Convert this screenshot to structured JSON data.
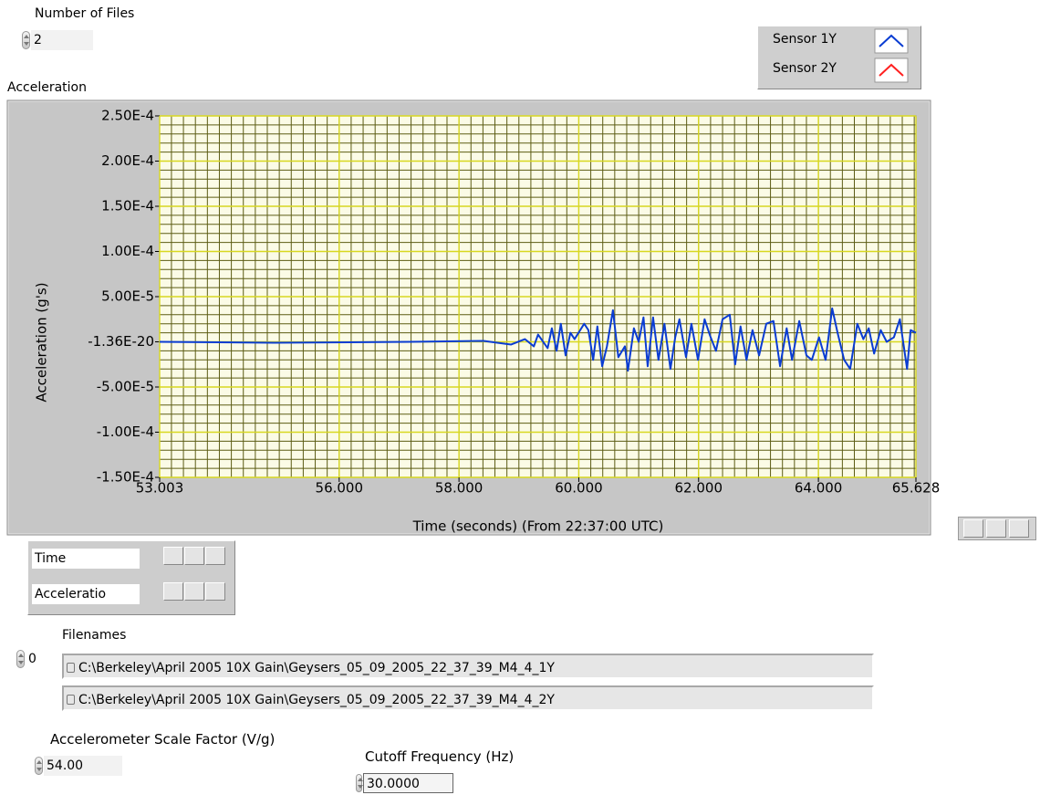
{
  "number_of_files": {
    "label": "Number of Files",
    "value": "2"
  },
  "chart_data": {
    "type": "line",
    "title": "Acceleration",
    "x_label": "Time (seconds) (From 22:37:00 UTC)",
    "y_label": "Acceleration (g's)",
    "x": [
      53.003,
      54.91,
      57.19,
      58.41,
      58.87,
      59.1,
      59.25,
      59.32,
      59.48,
      59.55,
      59.63,
      59.7,
      59.78,
      59.86,
      59.93,
      60.09,
      60.16,
      60.24,
      60.31,
      60.39,
      60.47,
      60.57,
      60.66,
      60.77,
      60.82,
      60.92,
      61.0,
      61.08,
      61.15,
      61.24,
      61.33,
      61.43,
      61.53,
      61.61,
      61.68,
      61.79,
      61.88,
      61.99,
      62.1,
      62.19,
      62.29,
      62.4,
      62.52,
      62.61,
      62.7,
      62.8,
      62.9,
      63.01,
      63.13,
      63.25,
      63.36,
      63.47,
      63.56,
      63.68,
      63.8,
      63.89,
      64.01,
      64.12,
      64.23,
      64.32,
      64.43,
      64.53,
      64.65,
      64.75,
      64.84,
      64.93,
      65.04,
      65.14,
      65.26,
      65.36,
      65.48,
      65.54,
      65.628
    ],
    "series": [
      {
        "name": "Sensor 1Y",
        "color": "#0a3cd2",
        "values": [
          0,
          -1e-06,
          0,
          1e-06,
          -3e-06,
          3e-06,
          -5e-06,
          8e-06,
          -7e-06,
          1.5e-05,
          -1e-05,
          2e-05,
          -1.5e-05,
          1e-05,
          3e-06,
          2e-05,
          1.3e-05,
          -2e-05,
          1.7e-05,
          -2.7e-05,
          -5e-06,
          3.5e-05,
          -1.7e-05,
          -5e-06,
          -3.2e-05,
          1.5e-05,
          0,
          2.7e-05,
          -2.7e-05,
          2.7e-05,
          -2e-05,
          2e-05,
          -3e-05,
          5e-06,
          2.5e-05,
          -1.7e-05,
          2e-05,
          -2e-05,
          2.5e-05,
          7e-06,
          -1e-05,
          2.5e-05,
          3e-05,
          -2.5e-05,
          1.7e-05,
          -2e-05,
          1.3e-05,
          -1.5e-05,
          2e-05,
          2.3e-05,
          -2.7e-05,
          1.5e-05,
          -2e-05,
          2.3e-05,
          -1.5e-05,
          -2e-05,
          5e-06,
          -2e-05,
          3.7e-05,
          1e-05,
          -2e-05,
          -3e-05,
          2e-05,
          3e-06,
          1.5e-05,
          -1.3e-05,
          1.3e-05,
          0,
          5e-06,
          2.5e-05,
          -3e-05,
          1.3e-05,
          1e-05
        ]
      },
      {
        "name": "Sensor 2Y",
        "color": "#ff2020"
      }
    ],
    "xlim": [
      53.003,
      65.628
    ],
    "ylim": [
      -0.00015,
      0.00025
    ],
    "xticks": [
      53.003,
      {
        "value": 56,
        "label": "56.000"
      },
      {
        "value": 58,
        "label": "58.000"
      },
      {
        "value": 60,
        "label": "60.000"
      },
      {
        "value": 62,
        "label": "62.000"
      },
      {
        "value": 64,
        "label": "64.000"
      },
      65.628
    ],
    "yticks": [
      {
        "value": -0.00015,
        "label": "-1.50E-4"
      },
      {
        "value": -0.0001,
        "label": "-1.00E-4"
      },
      {
        "value": -5e-05,
        "label": "-5.00E-5"
      },
      {
        "value": -1.36e-20,
        "label": "-1.36E-20"
      },
      {
        "value": 5e-05,
        "label": "5.00E-5"
      },
      {
        "value": 0.0001,
        "label": "1.00E-4"
      },
      {
        "value": 0.00015,
        "label": "1.50E-4"
      },
      {
        "value": 0.0002,
        "label": "2.00E-4"
      },
      {
        "value": 0.00025,
        "label": "2.50E-4"
      }
    ],
    "grid": true
  },
  "scale_legend": {
    "rows": [
      "Time",
      "Acceleratio"
    ]
  },
  "filenames": {
    "label": "Filenames",
    "index": "0",
    "items": [
      "C:\\Berkeley\\April 2005 10X Gain\\Geysers_05_09_2005_22_37_39_M4_4_1Y",
      "C:\\Berkeley\\April 2005 10X Gain\\Geysers_05_09_2005_22_37_39_M4_4_2Y"
    ]
  },
  "scale_factor": {
    "label": "Accelerometer Scale Factor (V/g)",
    "value": "54.00"
  },
  "cutoff_frequency": {
    "label": "Cutoff Frequency (Hz)",
    "value": "30.0000"
  }
}
